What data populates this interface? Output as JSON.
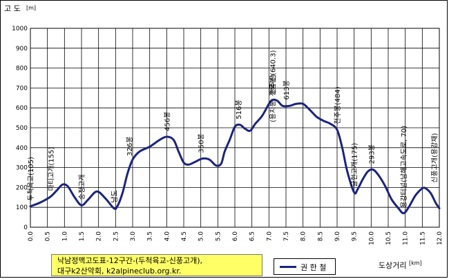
{
  "chart_data": {
    "type": "line",
    "title_line1": "낙남정맥고도표-12구간-(두척육교-신풍고개),",
    "title_line2": "대구k2산악회, k2alpineclub.org.kr.",
    "ylabel": "고 도",
    "yunit": "[m]",
    "xlabel": "도상거리",
    "xunit": "[km]",
    "ylim": [
      0,
      1000
    ],
    "xlim": [
      0,
      12
    ],
    "yticks": [
      "0",
      "100",
      "200",
      "300",
      "400",
      "500",
      "600",
      "700",
      "800",
      "900",
      "1000"
    ],
    "xticks": [
      "0.0",
      "0.5",
      "1.0",
      "1.5",
      "2.0",
      "2.5",
      "3.0",
      "3.5",
      "4.0",
      "4.5",
      "5.0",
      "5.5",
      "6.0",
      "6.5",
      "7.0",
      "7.5",
      "8.0",
      "8.5",
      "9.0",
      "9.5",
      "10.0",
      "10.5",
      "11.0",
      "11.5",
      "12.0"
    ],
    "grid": true,
    "legend_position": "bottom",
    "series": [
      {
        "name": "권 한 철",
        "color": "#1a237e",
        "x": [
          0.0,
          0.3,
          0.6,
          0.8,
          0.95,
          1.1,
          1.3,
          1.5,
          1.7,
          1.95,
          2.2,
          2.45,
          2.55,
          2.7,
          2.85,
          3.0,
          3.2,
          3.5,
          3.8,
          4.0,
          4.2,
          4.35,
          4.5,
          4.65,
          4.85,
          5.05,
          5.25,
          5.45,
          5.6,
          5.7,
          5.85,
          6.0,
          6.15,
          6.3,
          6.45,
          6.6,
          6.8,
          7.0,
          7.1,
          7.25,
          7.4,
          7.6,
          7.8,
          8.0,
          8.2,
          8.4,
          8.6,
          8.8,
          9.0,
          9.15,
          9.3,
          9.5,
          9.6,
          9.75,
          9.9,
          10.05,
          10.2,
          10.4,
          10.6,
          10.8,
          10.95,
          11.1,
          11.3,
          11.5,
          11.6,
          11.75,
          11.9,
          12.0
        ],
        "y": [
          105,
          125,
          155,
          190,
          215,
          205,
          150,
          110,
          140,
          180,
          145,
          95,
          105,
          170,
          270,
          340,
          380,
          405,
          440,
          455,
          440,
          380,
          325,
          315,
          330,
          345,
          340,
          310,
          320,
          380,
          440,
          505,
          515,
          495,
          485,
          520,
          560,
          620,
          640,
          635,
          610,
          610,
          620,
          620,
          590,
          555,
          535,
          520,
          490,
          400,
          280,
          175,
          190,
          240,
          280,
          290,
          265,
          210,
          140,
          95,
          70,
          100,
          160,
          195,
          195,
          170,
          120,
          95
        ]
      }
    ],
    "annotations": [
      {
        "text": "두척육교(105)",
        "x": 0.0,
        "y": 105
      },
      {
        "text": "마티고개(155)",
        "x": 0.6,
        "y": 155
      },
      {
        "text": "송정고개",
        "x": 1.5,
        "y": 110
      },
      {
        "text": "남도",
        "x": 2.45,
        "y": 95
      },
      {
        "text": "326봉",
        "x": 2.9,
        "y": 330
      },
      {
        "text": "456봉",
        "x": 4.0,
        "y": 455
      },
      {
        "text": "350봉",
        "x": 5.0,
        "y": 345
      },
      {
        "text": "516봉",
        "x": 6.1,
        "y": 515
      },
      {
        "text": "천주산(640.3)",
        "x": 7.1,
        "y": 640
      },
      {
        "text": "(용지봉, 정룡봉)",
        "x": 7.1,
        "y": 500
      },
      {
        "text": "613봉",
        "x": 7.5,
        "y": 613
      },
      {
        "text": "천주봉(484)",
        "x": 9.0,
        "y": 490
      },
      {
        "text": "굴현고개(175)",
        "x": 9.5,
        "y": 175
      },
      {
        "text": "293봉",
        "x": 10.0,
        "y": 290
      },
      {
        "text": "용강터널(남해고속도로, 70)",
        "x": 10.95,
        "y": 70
      },
      {
        "text": "신풍고개(용강재)",
        "x": 11.85,
        "y": 195
      }
    ]
  }
}
